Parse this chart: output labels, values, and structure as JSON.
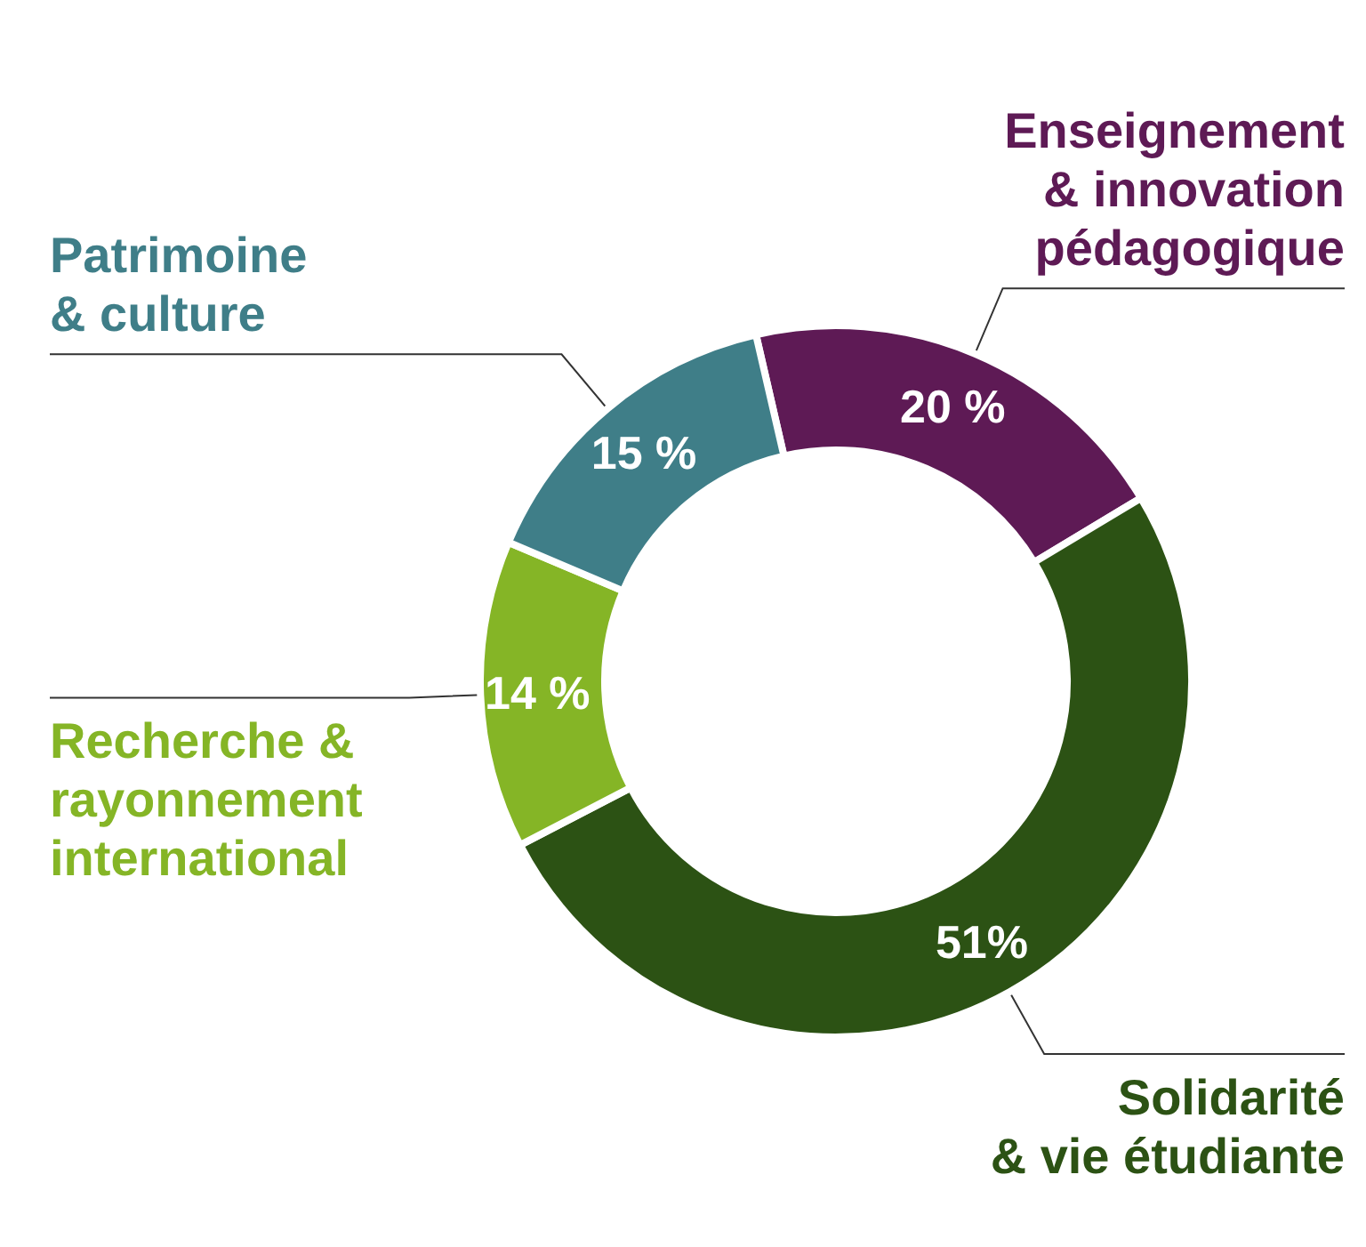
{
  "chart_data": {
    "type": "donut",
    "categories": [
      "Enseignement\n& innovation\npédagogique",
      "Solidarité\n& vie étudiante",
      "Recherche &\nrayonnement\ninternational",
      "Patrimoine\n& culture"
    ],
    "values": [
      20,
      51,
      14,
      15
    ],
    "colors": [
      "#5e1a55",
      "#2c5214",
      "#85b526",
      "#3f7e88"
    ],
    "value_labels": [
      "20 %",
      "51%",
      "14 %",
      "15 %"
    ],
    "legend": false
  }
}
